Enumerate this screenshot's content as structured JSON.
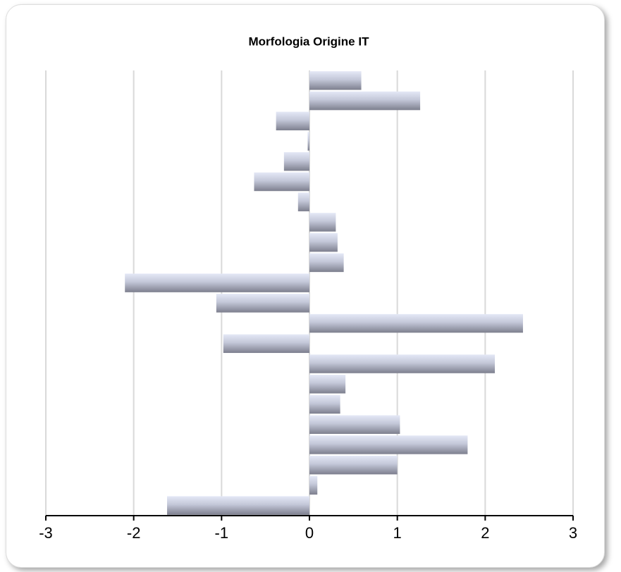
{
  "chart_data": {
    "type": "barh",
    "title": "Morfologia Origine IT",
    "categories": [
      null,
      null,
      null,
      null,
      null,
      null,
      null,
      null,
      null,
      null,
      null,
      null,
      null,
      null,
      null,
      null,
      null,
      null,
      null,
      null,
      null,
      null
    ],
    "values": [
      0.59,
      1.26,
      -0.38,
      -0.02,
      -0.29,
      -0.63,
      -0.13,
      0.3,
      0.32,
      0.39,
      -2.1,
      -1.06,
      2.43,
      -0.98,
      2.11,
      0.41,
      0.35,
      1.03,
      1.8,
      1.0,
      0.09,
      -1.62
    ],
    "color": "#7d7f8e",
    "xlim": [
      -3,
      3
    ],
    "xticks": [
      -3,
      -2,
      -1,
      0,
      1,
      2,
      3
    ],
    "grid": true
  }
}
